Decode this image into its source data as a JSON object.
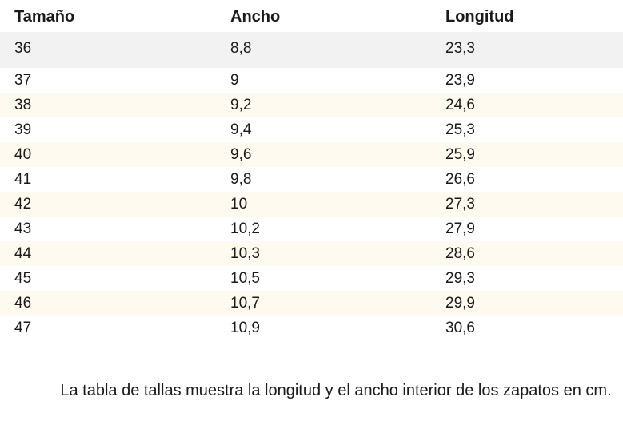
{
  "table": {
    "headers": [
      "Tamaño",
      "Ancho",
      "Longitud"
    ],
    "rows": [
      [
        "36",
        "8,8",
        "23,3"
      ],
      [
        "37",
        "9",
        "23,9"
      ],
      [
        "38",
        "9,2",
        "24,6"
      ],
      [
        "39",
        "9,4",
        "25,3"
      ],
      [
        "40",
        "9,6",
        "25,9"
      ],
      [
        "41",
        "9,8",
        "26,6"
      ],
      [
        "42",
        "10",
        "27,3"
      ],
      [
        "43",
        "10,2",
        "27,9"
      ],
      [
        "44",
        "10,3",
        "28,6"
      ],
      [
        "45",
        "10,5",
        "29,3"
      ],
      [
        "46",
        "10,7",
        "29,9"
      ],
      [
        "47",
        "10,9",
        "30,6"
      ]
    ]
  },
  "caption": "La tabla de tallas muestra la longitud y el ancho interior de los zapatos en cm.",
  "colors": {
    "first_row_bg": "#f2f2f2",
    "alt_row_bg": "#fffaf0",
    "text": "#1a1a1a"
  }
}
